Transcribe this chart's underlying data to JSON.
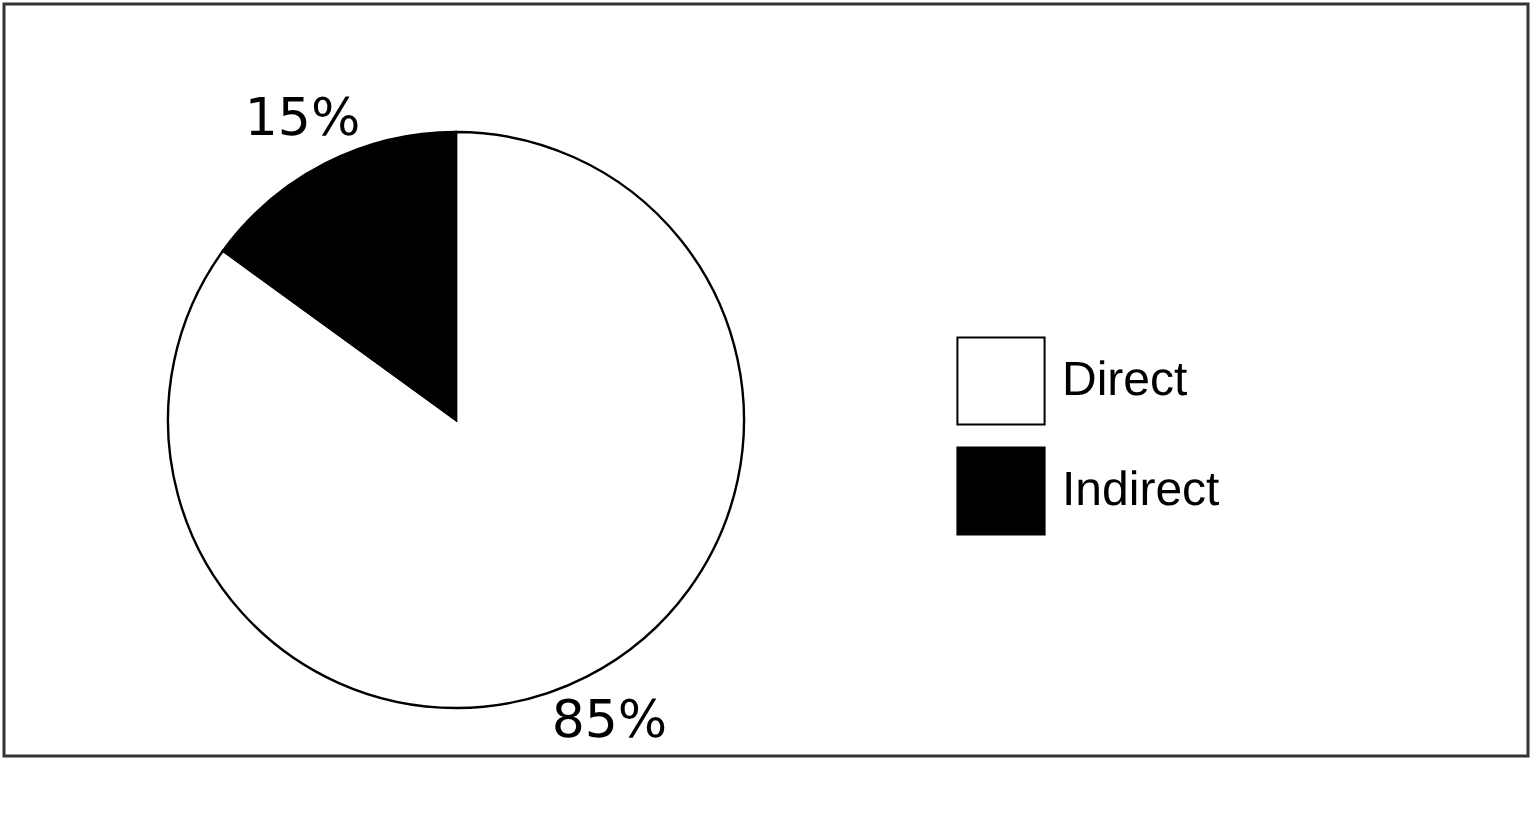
{
  "chart_data": {
    "type": "pie",
    "categories": [
      "Direct",
      "Indirect"
    ],
    "values": [
      85,
      15
    ],
    "colors": [
      "#ffffff",
      "#000000"
    ],
    "value_labels": [
      "85%",
      "15%"
    ],
    "legend": "right"
  }
}
